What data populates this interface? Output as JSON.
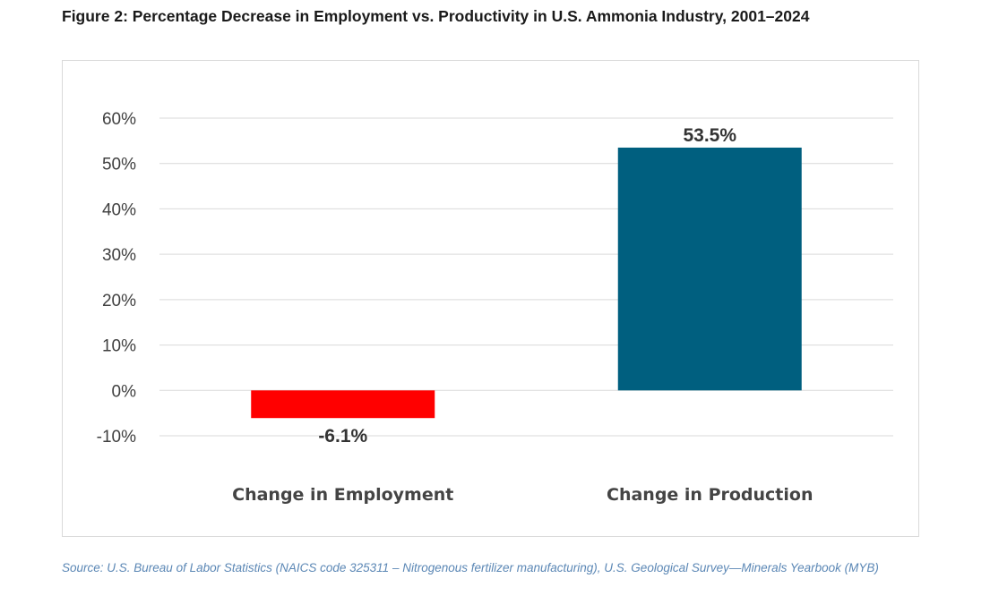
{
  "figure": {
    "title": "Figure 2: Percentage Decrease in Employment vs. Productivity in U.S. Ammonia Industry, 2001–2024",
    "source": "Source: U.S. Bureau of Labor Statistics (NAICS code 325311 – Nitrogenous fertilizer manufacturing), U.S. Geological Survey—Minerals Yearbook (MYB)"
  },
  "chart_data": {
    "type": "bar",
    "categories": [
      "Change in Employment",
      "Change in Production"
    ],
    "values": [
      -6.1,
      53.5
    ],
    "data_labels": [
      "-6.1%",
      "53.5%"
    ],
    "bar_colors": [
      "#ff0000",
      "#005f7f"
    ],
    "ylim": [
      -10,
      60
    ],
    "yticks": [
      60,
      50,
      40,
      30,
      20,
      10,
      0,
      -10
    ],
    "ytick_labels": [
      "60%",
      "50%",
      "40%",
      "30%",
      "20%",
      "10%",
      "0%",
      "-10%"
    ],
    "grid": true,
    "legend": "none",
    "gridline_color": "#d9d9d9"
  }
}
